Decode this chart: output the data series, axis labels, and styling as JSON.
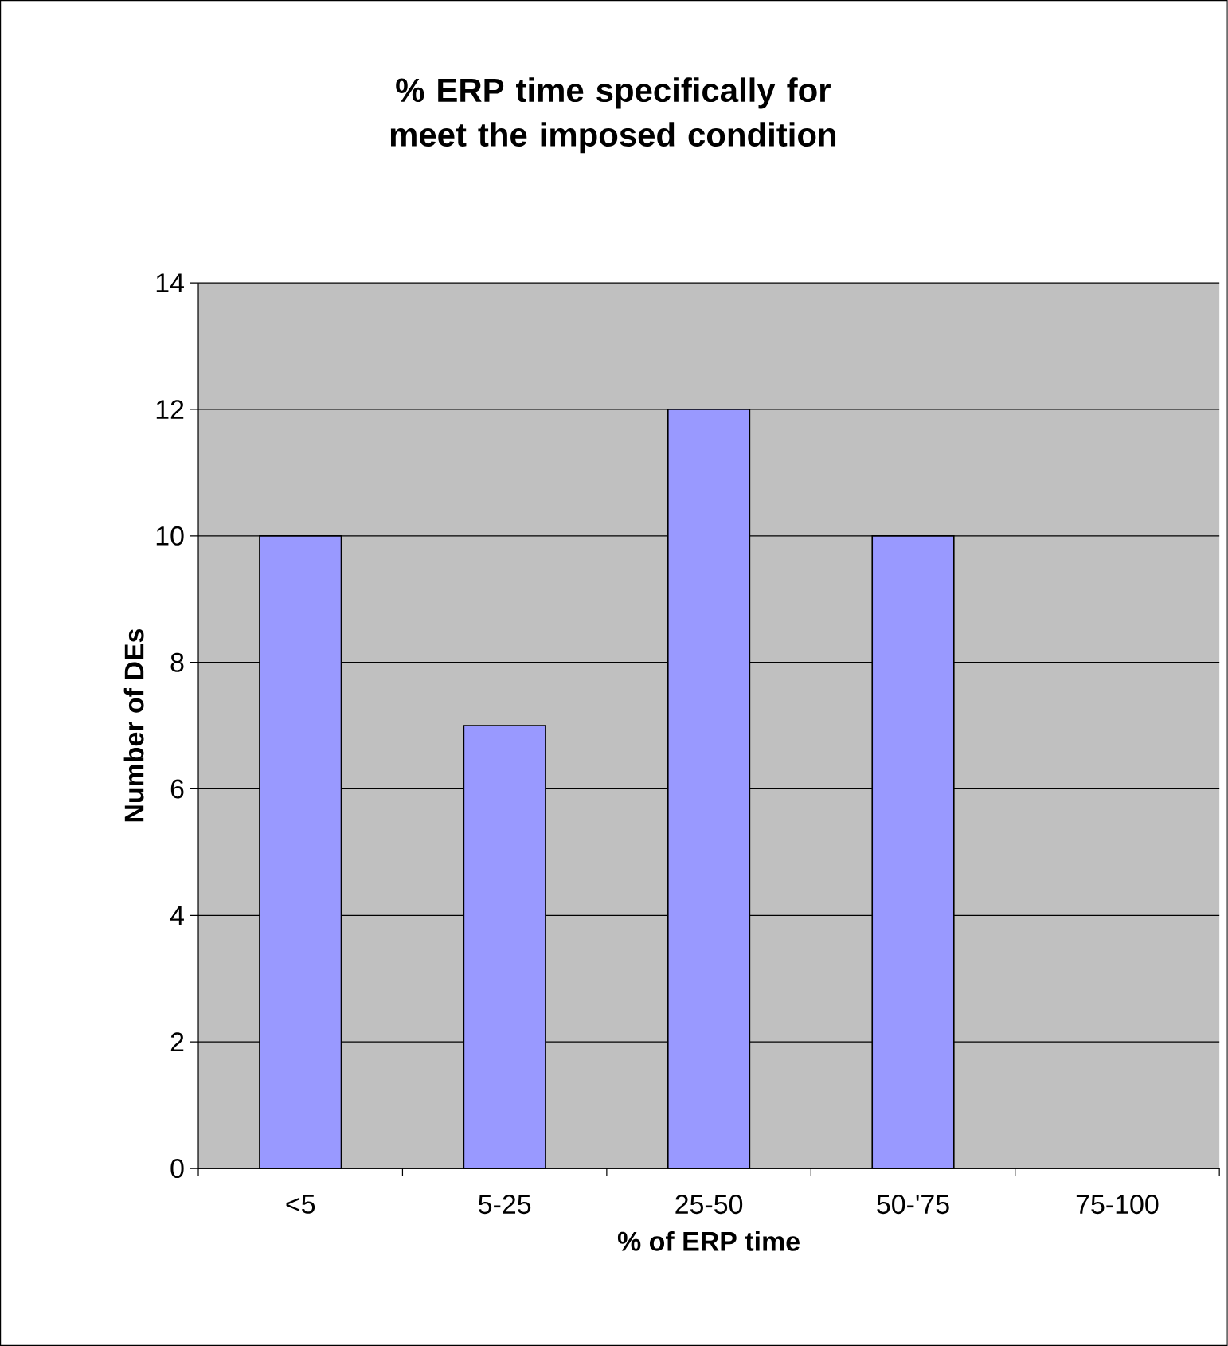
{
  "chart_data": {
    "type": "bar",
    "title": "% ERP time specifically for meet the imposed condition",
    "xlabel": "% of ERP time",
    "ylabel": "Number of DEs",
    "categories": [
      "<5",
      "5-25",
      "25-50",
      "50-'75",
      "75-100"
    ],
    "values": [
      10,
      7,
      12,
      10,
      null
    ],
    "color": "#9999ff",
    "ylim": [
      0,
      14
    ],
    "yticks": [
      0,
      2,
      4,
      6,
      8,
      10,
      12,
      14
    ],
    "grid": "y"
  }
}
